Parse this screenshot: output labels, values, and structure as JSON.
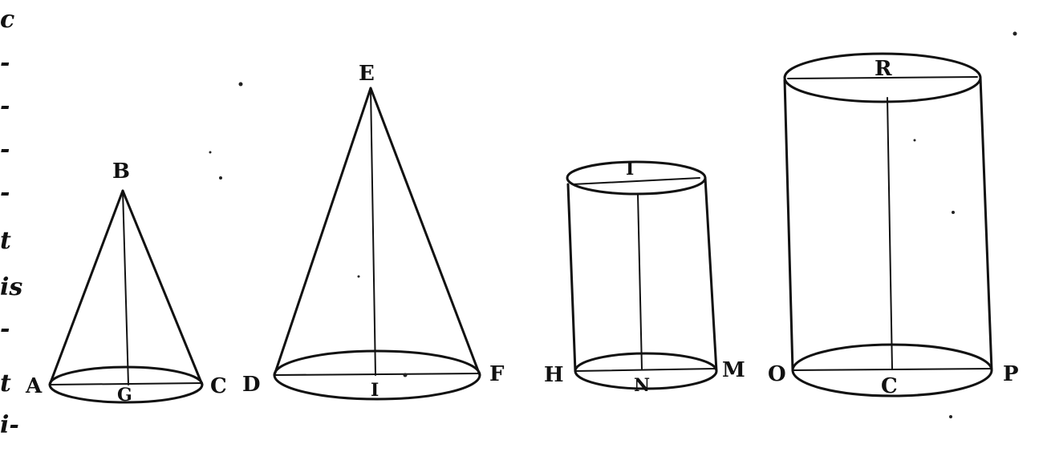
{
  "figure": {
    "labels": {
      "cone1_apex": "B",
      "cone1_left": "A",
      "cone1_center": "G",
      "cone1_right": "C",
      "cone2_apex": "E",
      "cone2_left": "D",
      "cone2_center": "I",
      "cone2_right": "F",
      "cyl1_top": "I",
      "cyl1_left": "H",
      "cyl1_center": "N",
      "cyl1_right": "M",
      "cyl2_top": "R",
      "cyl2_left": "O",
      "cyl2_center": "C",
      "cyl2_right": "P"
    },
    "margin_glyphs": [
      "c",
      "-",
      "-",
      "-",
      "-",
      "t",
      "is",
      "-",
      "t",
      "i-"
    ]
  }
}
